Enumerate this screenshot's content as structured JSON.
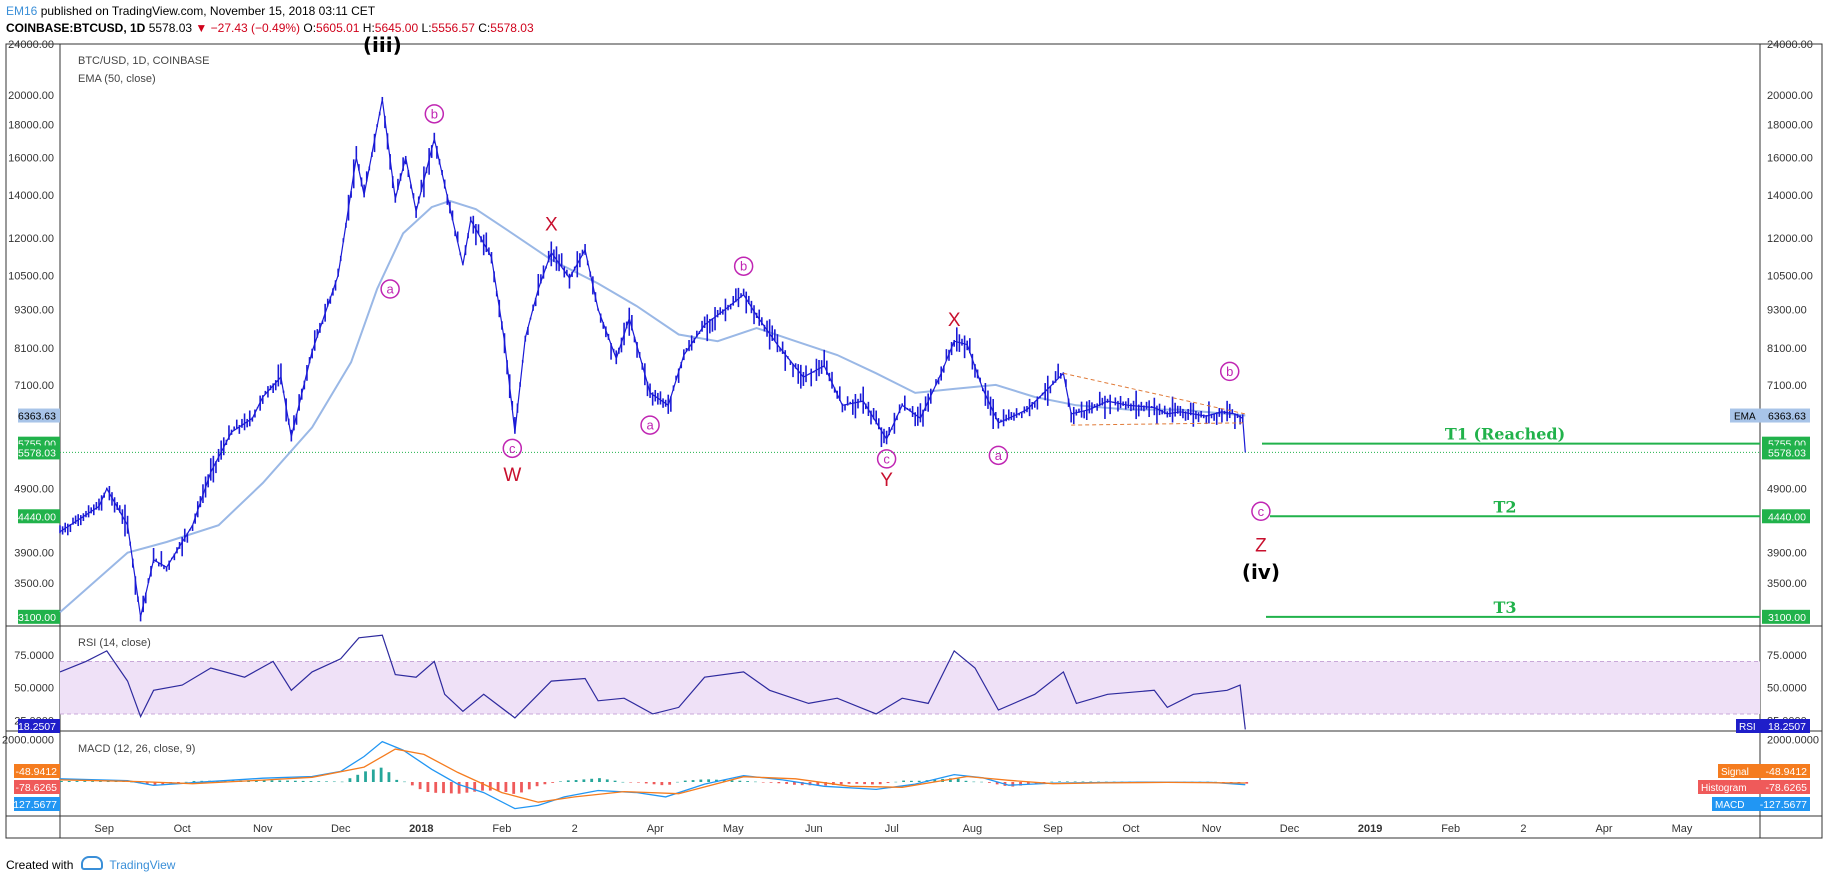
{
  "header": {
    "author": "EM16",
    "published": "published on TradingView.com, November 15, 2018 03:11 CET",
    "symbol": "COINBASE:BTCUSD, 1D",
    "last": "5578.03",
    "change": "▼ −27.43 (−0.49%)",
    "o_label": "O:",
    "o": "5605.01",
    "h_label": "H:",
    "h": "5645.00",
    "l_label": "L:",
    "l": "5556.57",
    "c_label": "C:",
    "c": "5578.03"
  },
  "footer": {
    "created_with": "Created with",
    "brand": "TradingView"
  },
  "chart_data": [
    {
      "type": "candlestick",
      "title": "BTC/USD, 1D, COINBASE",
      "indicator": "EMA (50, close)",
      "scale": "log",
      "ylim": [
        3000,
        24000
      ],
      "y_ticks": [
        "24000.00",
        "20000.00",
        "18000.00",
        "16000.00",
        "14000.00",
        "12000.00",
        "10500.00",
        "9300.00",
        "8100.00",
        "7100.00",
        "4900.00",
        "3900.00",
        "3500.00"
      ],
      "price_tags": [
        {
          "text": "6363.63",
          "value": 6363.63,
          "color": "#a8c4e8",
          "text_color": "#000"
        },
        {
          "text": "5755.00",
          "value": 5755,
          "color": "#21b24b",
          "text_color": "#fff"
        },
        {
          "text": "5578.03",
          "value": 5578.03,
          "color": "#21b24b",
          "text_color": "#fff"
        },
        {
          "text": "4440.00",
          "value": 4440,
          "color": "#21b24b",
          "text_color": "#fff"
        },
        {
          "text": "3100.00",
          "value": 3100,
          "color": "#21b24b",
          "text_color": "#fff"
        }
      ],
      "ema_tag_label": "EMA",
      "x_labels": [
        "Sep",
        "Oct",
        "Nov",
        "Dec",
        "2018",
        "Feb",
        "2",
        "Apr",
        "May",
        "Jun",
        "Jul",
        "Aug",
        "Sep",
        "Oct",
        "Nov",
        "Dec",
        "2019",
        "Feb",
        "2",
        "Apr",
        "May"
      ],
      "price_series": [
        [
          "2017-08-15",
          4200
        ],
        [
          "2017-08-30",
          4600
        ],
        [
          "2017-09-02",
          4900
        ],
        [
          "2017-09-10",
          4300
        ],
        [
          "2017-09-15",
          3100
        ],
        [
          "2017-09-20",
          3800
        ],
        [
          "2017-09-25",
          3700
        ],
        [
          "2017-10-05",
          4300
        ],
        [
          "2017-10-12",
          5200
        ],
        [
          "2017-10-20",
          6000
        ],
        [
          "2017-10-28",
          6300
        ],
        [
          "2017-11-01",
          6800
        ],
        [
          "2017-11-08",
          7300
        ],
        [
          "2017-11-12",
          5900
        ],
        [
          "2017-11-20",
          8000
        ],
        [
          "2017-11-30",
          10500
        ],
        [
          "2017-12-07",
          16000
        ],
        [
          "2017-12-10",
          14000
        ],
        [
          "2017-12-17",
          19700
        ],
        [
          "2017-12-22",
          13800
        ],
        [
          "2017-12-26",
          16000
        ],
        [
          "2017-12-30",
          13200
        ],
        [
          "2018-01-06",
          17100
        ],
        [
          "2018-01-10",
          14500
        ],
        [
          "2018-01-17",
          10900
        ],
        [
          "2018-01-20",
          12800
        ],
        [
          "2018-01-28",
          11200
        ],
        [
          "2018-02-02",
          8300
        ],
        [
          "2018-02-06",
          6000
        ],
        [
          "2018-02-10",
          8400
        ],
        [
          "2018-02-15",
          10000
        ],
        [
          "2018-02-20",
          11400
        ],
        [
          "2018-02-27",
          10400
        ],
        [
          "2018-03-05",
          11500
        ],
        [
          "2018-03-10",
          9300
        ],
        [
          "2018-03-17",
          7800
        ],
        [
          "2018-03-22",
          9000
        ],
        [
          "2018-03-30",
          6900
        ],
        [
          "2018-04-06",
          6600
        ],
        [
          "2018-04-12",
          7900
        ],
        [
          "2018-04-20",
          8800
        ],
        [
          "2018-04-28",
          9300
        ],
        [
          "2018-05-05",
          9800
        ],
        [
          "2018-05-10",
          9100
        ],
        [
          "2018-05-18",
          8200
        ],
        [
          "2018-05-28",
          7300
        ],
        [
          "2018-06-05",
          7600
        ],
        [
          "2018-06-12",
          6600
        ],
        [
          "2018-06-20",
          6700
        ],
        [
          "2018-06-29",
          5850
        ],
        [
          "2018-07-05",
          6600
        ],
        [
          "2018-07-12",
          6300
        ],
        [
          "2018-07-20",
          7400
        ],
        [
          "2018-07-25",
          8300
        ],
        [
          "2018-07-30",
          8200
        ],
        [
          "2018-08-05",
          7000
        ],
        [
          "2018-08-11",
          6200
        ],
        [
          "2018-08-15",
          6300
        ],
        [
          "2018-08-22",
          6500
        ],
        [
          "2018-08-30",
          7000
        ],
        [
          "2018-09-05",
          7400
        ],
        [
          "2018-09-08",
          6400
        ],
        [
          "2018-09-15",
          6500
        ],
        [
          "2018-09-22",
          6700
        ],
        [
          "2018-09-30",
          6600
        ],
        [
          "2018-10-10",
          6550
        ],
        [
          "2018-10-15",
          6400
        ],
        [
          "2018-10-20",
          6450
        ],
        [
          "2018-10-30",
          6350
        ],
        [
          "2018-11-05",
          6450
        ],
        [
          "2018-11-10",
          6400
        ],
        [
          "2018-11-13",
          6300
        ],
        [
          "2018-11-14",
          5578
        ]
      ],
      "ema_series": [
        [
          "2017-08-15",
          3150
        ],
        [
          "2017-09-10",
          3900
        ],
        [
          "2017-09-25",
          4050
        ],
        [
          "2017-10-15",
          4300
        ],
        [
          "2017-11-01",
          5000
        ],
        [
          "2017-11-20",
          6100
        ],
        [
          "2017-12-05",
          7700
        ],
        [
          "2017-12-15",
          10000
        ],
        [
          "2017-12-25",
          12200
        ],
        [
          "2018-01-05",
          13400
        ],
        [
          "2018-01-12",
          13700
        ],
        [
          "2018-01-22",
          13300
        ],
        [
          "2018-02-05",
          12200
        ],
        [
          "2018-02-20",
          11100
        ],
        [
          "2018-03-10",
          10200
        ],
        [
          "2018-03-25",
          9400
        ],
        [
          "2018-04-10",
          8500
        ],
        [
          "2018-04-25",
          8300
        ],
        [
          "2018-05-10",
          8700
        ],
        [
          "2018-05-25",
          8300
        ],
        [
          "2018-06-10",
          7900
        ],
        [
          "2018-06-25",
          7400
        ],
        [
          "2018-07-10",
          6900
        ],
        [
          "2018-07-25",
          7000
        ],
        [
          "2018-08-10",
          7100
        ],
        [
          "2018-08-25",
          6800
        ],
        [
          "2018-09-10",
          6600
        ],
        [
          "2018-09-30",
          6500
        ],
        [
          "2018-10-20",
          6500
        ],
        [
          "2018-11-14",
          6363.63
        ]
      ],
      "wave_labels": [
        {
          "text": "(iii)",
          "date": "2017-12-17",
          "y": 24000,
          "style": "bold"
        },
        {
          "text": "a",
          "date": "2017-12-20",
          "y": 10000,
          "style": "circle"
        },
        {
          "text": "b",
          "date": "2018-01-06",
          "y": 18700,
          "style": "circle"
        },
        {
          "text": "X",
          "date": "2018-02-20",
          "y": 12600,
          "style": "red"
        },
        {
          "text": "c",
          "date": "2018-02-05",
          "y": 5660,
          "style": "circle"
        },
        {
          "text": "W",
          "date": "2018-02-05",
          "y": 5150,
          "style": "red"
        },
        {
          "text": "a",
          "date": "2018-03-30",
          "y": 6150,
          "style": "circle"
        },
        {
          "text": "b",
          "date": "2018-05-05",
          "y": 10850,
          "style": "circle"
        },
        {
          "text": "c",
          "date": "2018-06-29",
          "y": 5450,
          "style": "circle"
        },
        {
          "text": "Y",
          "date": "2018-06-29",
          "y": 5050,
          "style": "red"
        },
        {
          "text": "X",
          "date": "2018-07-25",
          "y": 8950,
          "style": "red"
        },
        {
          "text": "a",
          "date": "2018-08-11",
          "y": 5520,
          "style": "circle"
        },
        {
          "text": "b",
          "date": "2018-11-08",
          "y": 7450,
          "style": "circle"
        },
        {
          "text": "c",
          "date": "2018-11-20",
          "y": 4520,
          "style": "circle"
        },
        {
          "text": "Z",
          "date": "2018-11-20",
          "y": 4000,
          "style": "red"
        },
        {
          "text": "(iv)",
          "date": "2018-11-20",
          "y": 3650,
          "style": "bold"
        }
      ],
      "targets": [
        {
          "name": "T1 (Reached)",
          "value": 5755
        },
        {
          "name": "T2",
          "value": 4440
        },
        {
          "name": "T3",
          "value": 3100
        }
      ],
      "triangle": {
        "upper": [
          [
            "2018-09-05",
            7400
          ],
          [
            "2018-11-14",
            6400
          ]
        ],
        "lower": [
          [
            "2018-09-08",
            6150
          ],
          [
            "2018-11-14",
            6200
          ]
        ]
      }
    },
    {
      "type": "line",
      "title": "RSI (14, close)",
      "ylim": [
        17,
        97
      ],
      "y_ticks": [
        "75.0000",
        "50.0000",
        "25.0000"
      ],
      "band": [
        30,
        70
      ],
      "last_tag": {
        "label": "RSI",
        "text": "18.2507"
      },
      "series": [
        [
          "2017-08-15",
          62
        ],
        [
          "2017-08-25",
          70
        ],
        [
          "2017-09-02",
          78
        ],
        [
          "2017-09-10",
          55
        ],
        [
          "2017-09-15",
          28
        ],
        [
          "2017-09-20",
          48
        ],
        [
          "2017-10-01",
          52
        ],
        [
          "2017-10-12",
          65
        ],
        [
          "2017-10-25",
          58
        ],
        [
          "2017-11-05",
          70
        ],
        [
          "2017-11-12",
          48
        ],
        [
          "2017-11-20",
          62
        ],
        [
          "2017-12-01",
          72
        ],
        [
          "2017-12-08",
          88
        ],
        [
          "2017-12-17",
          90
        ],
        [
          "2017-12-22",
          60
        ],
        [
          "2017-12-30",
          58
        ],
        [
          "2018-01-06",
          70
        ],
        [
          "2018-01-10",
          45
        ],
        [
          "2018-01-17",
          32
        ],
        [
          "2018-01-25",
          45
        ],
        [
          "2018-02-06",
          27
        ],
        [
          "2018-02-15",
          45
        ],
        [
          "2018-02-20",
          55
        ],
        [
          "2018-03-05",
          57
        ],
        [
          "2018-03-10",
          40
        ],
        [
          "2018-03-20",
          42
        ],
        [
          "2018-03-31",
          30
        ],
        [
          "2018-04-10",
          35
        ],
        [
          "2018-04-20",
          58
        ],
        [
          "2018-05-05",
          62
        ],
        [
          "2018-05-15",
          48
        ],
        [
          "2018-05-30",
          38
        ],
        [
          "2018-06-10",
          42
        ],
        [
          "2018-06-25",
          30
        ],
        [
          "2018-07-05",
          42
        ],
        [
          "2018-07-15",
          38
        ],
        [
          "2018-07-25",
          78
        ],
        [
          "2018-08-02",
          65
        ],
        [
          "2018-08-11",
          33
        ],
        [
          "2018-08-25",
          45
        ],
        [
          "2018-09-05",
          62
        ],
        [
          "2018-09-10",
          38
        ],
        [
          "2018-09-22",
          45
        ],
        [
          "2018-10-10",
          48
        ],
        [
          "2018-10-15",
          35
        ],
        [
          "2018-10-25",
          45
        ],
        [
          "2018-11-07",
          48
        ],
        [
          "2018-11-12",
          52
        ],
        [
          "2018-11-14",
          18.25
        ]
      ]
    },
    {
      "type": "line",
      "title": "MACD (12, 26, close, 9)",
      "ylim": [
        -1600,
        2400
      ],
      "y_ticks": [
        "2000.0000"
      ],
      "tags": [
        {
          "label": "Signal",
          "text": "-48.9412",
          "color": "#f57c1f"
        },
        {
          "label": "Histogram",
          "text": "-78.6265",
          "color": "#ef5a5a"
        },
        {
          "label": "MACD",
          "text": "-127.5677",
          "color": "#2196f3"
        }
      ],
      "macd_series": [
        [
          "2017-08-15",
          150
        ],
        [
          "2017-09-10",
          60
        ],
        [
          "2017-09-20",
          -160
        ],
        [
          "2017-10-10",
          10
        ],
        [
          "2017-11-01",
          180
        ],
        [
          "2017-11-20",
          260
        ],
        [
          "2017-12-01",
          500
        ],
        [
          "2017-12-10",
          1200
        ],
        [
          "2017-12-17",
          1900
        ],
        [
          "2017-12-25",
          1500
        ],
        [
          "2018-01-05",
          600
        ],
        [
          "2018-01-15",
          -100
        ],
        [
          "2018-01-25",
          -500
        ],
        [
          "2018-02-06",
          -1250
        ],
        [
          "2018-02-15",
          -1100
        ],
        [
          "2018-02-25",
          -700
        ],
        [
          "2018-03-10",
          -400
        ],
        [
          "2018-03-25",
          -500
        ],
        [
          "2018-04-05",
          -700
        ],
        [
          "2018-04-20",
          -100
        ],
        [
          "2018-05-05",
          300
        ],
        [
          "2018-05-20",
          100
        ],
        [
          "2018-06-05",
          -200
        ],
        [
          "2018-06-25",
          -350
        ],
        [
          "2018-07-10",
          -100
        ],
        [
          "2018-07-25",
          350
        ],
        [
          "2018-08-05",
          200
        ],
        [
          "2018-08-15",
          -150
        ],
        [
          "2018-09-01",
          -50
        ],
        [
          "2018-09-15",
          -30
        ],
        [
          "2018-10-05",
          -10
        ],
        [
          "2018-11-01",
          -20
        ],
        [
          "2018-11-14",
          -127.57
        ]
      ],
      "signal_series": [
        [
          "2017-08-15",
          100
        ],
        [
          "2017-09-15",
          20
        ],
        [
          "2017-10-05",
          -80
        ],
        [
          "2017-11-01",
          90
        ],
        [
          "2017-11-20",
          220
        ],
        [
          "2017-12-10",
          700
        ],
        [
          "2017-12-22",
          1550
        ],
        [
          "2018-01-02",
          1300
        ],
        [
          "2018-01-15",
          450
        ],
        [
          "2018-02-01",
          -500
        ],
        [
          "2018-02-15",
          -950
        ],
        [
          "2018-03-01",
          -700
        ],
        [
          "2018-03-20",
          -450
        ],
        [
          "2018-04-10",
          -550
        ],
        [
          "2018-05-05",
          250
        ],
        [
          "2018-05-25",
          150
        ],
        [
          "2018-06-15",
          -200
        ],
        [
          "2018-07-05",
          -250
        ],
        [
          "2018-07-30",
          260
        ],
        [
          "2018-08-15",
          80
        ],
        [
          "2018-09-01",
          -80
        ],
        [
          "2018-09-20",
          -40
        ],
        [
          "2018-10-15",
          -20
        ],
        [
          "2018-11-14",
          -48.94
        ]
      ]
    }
  ]
}
